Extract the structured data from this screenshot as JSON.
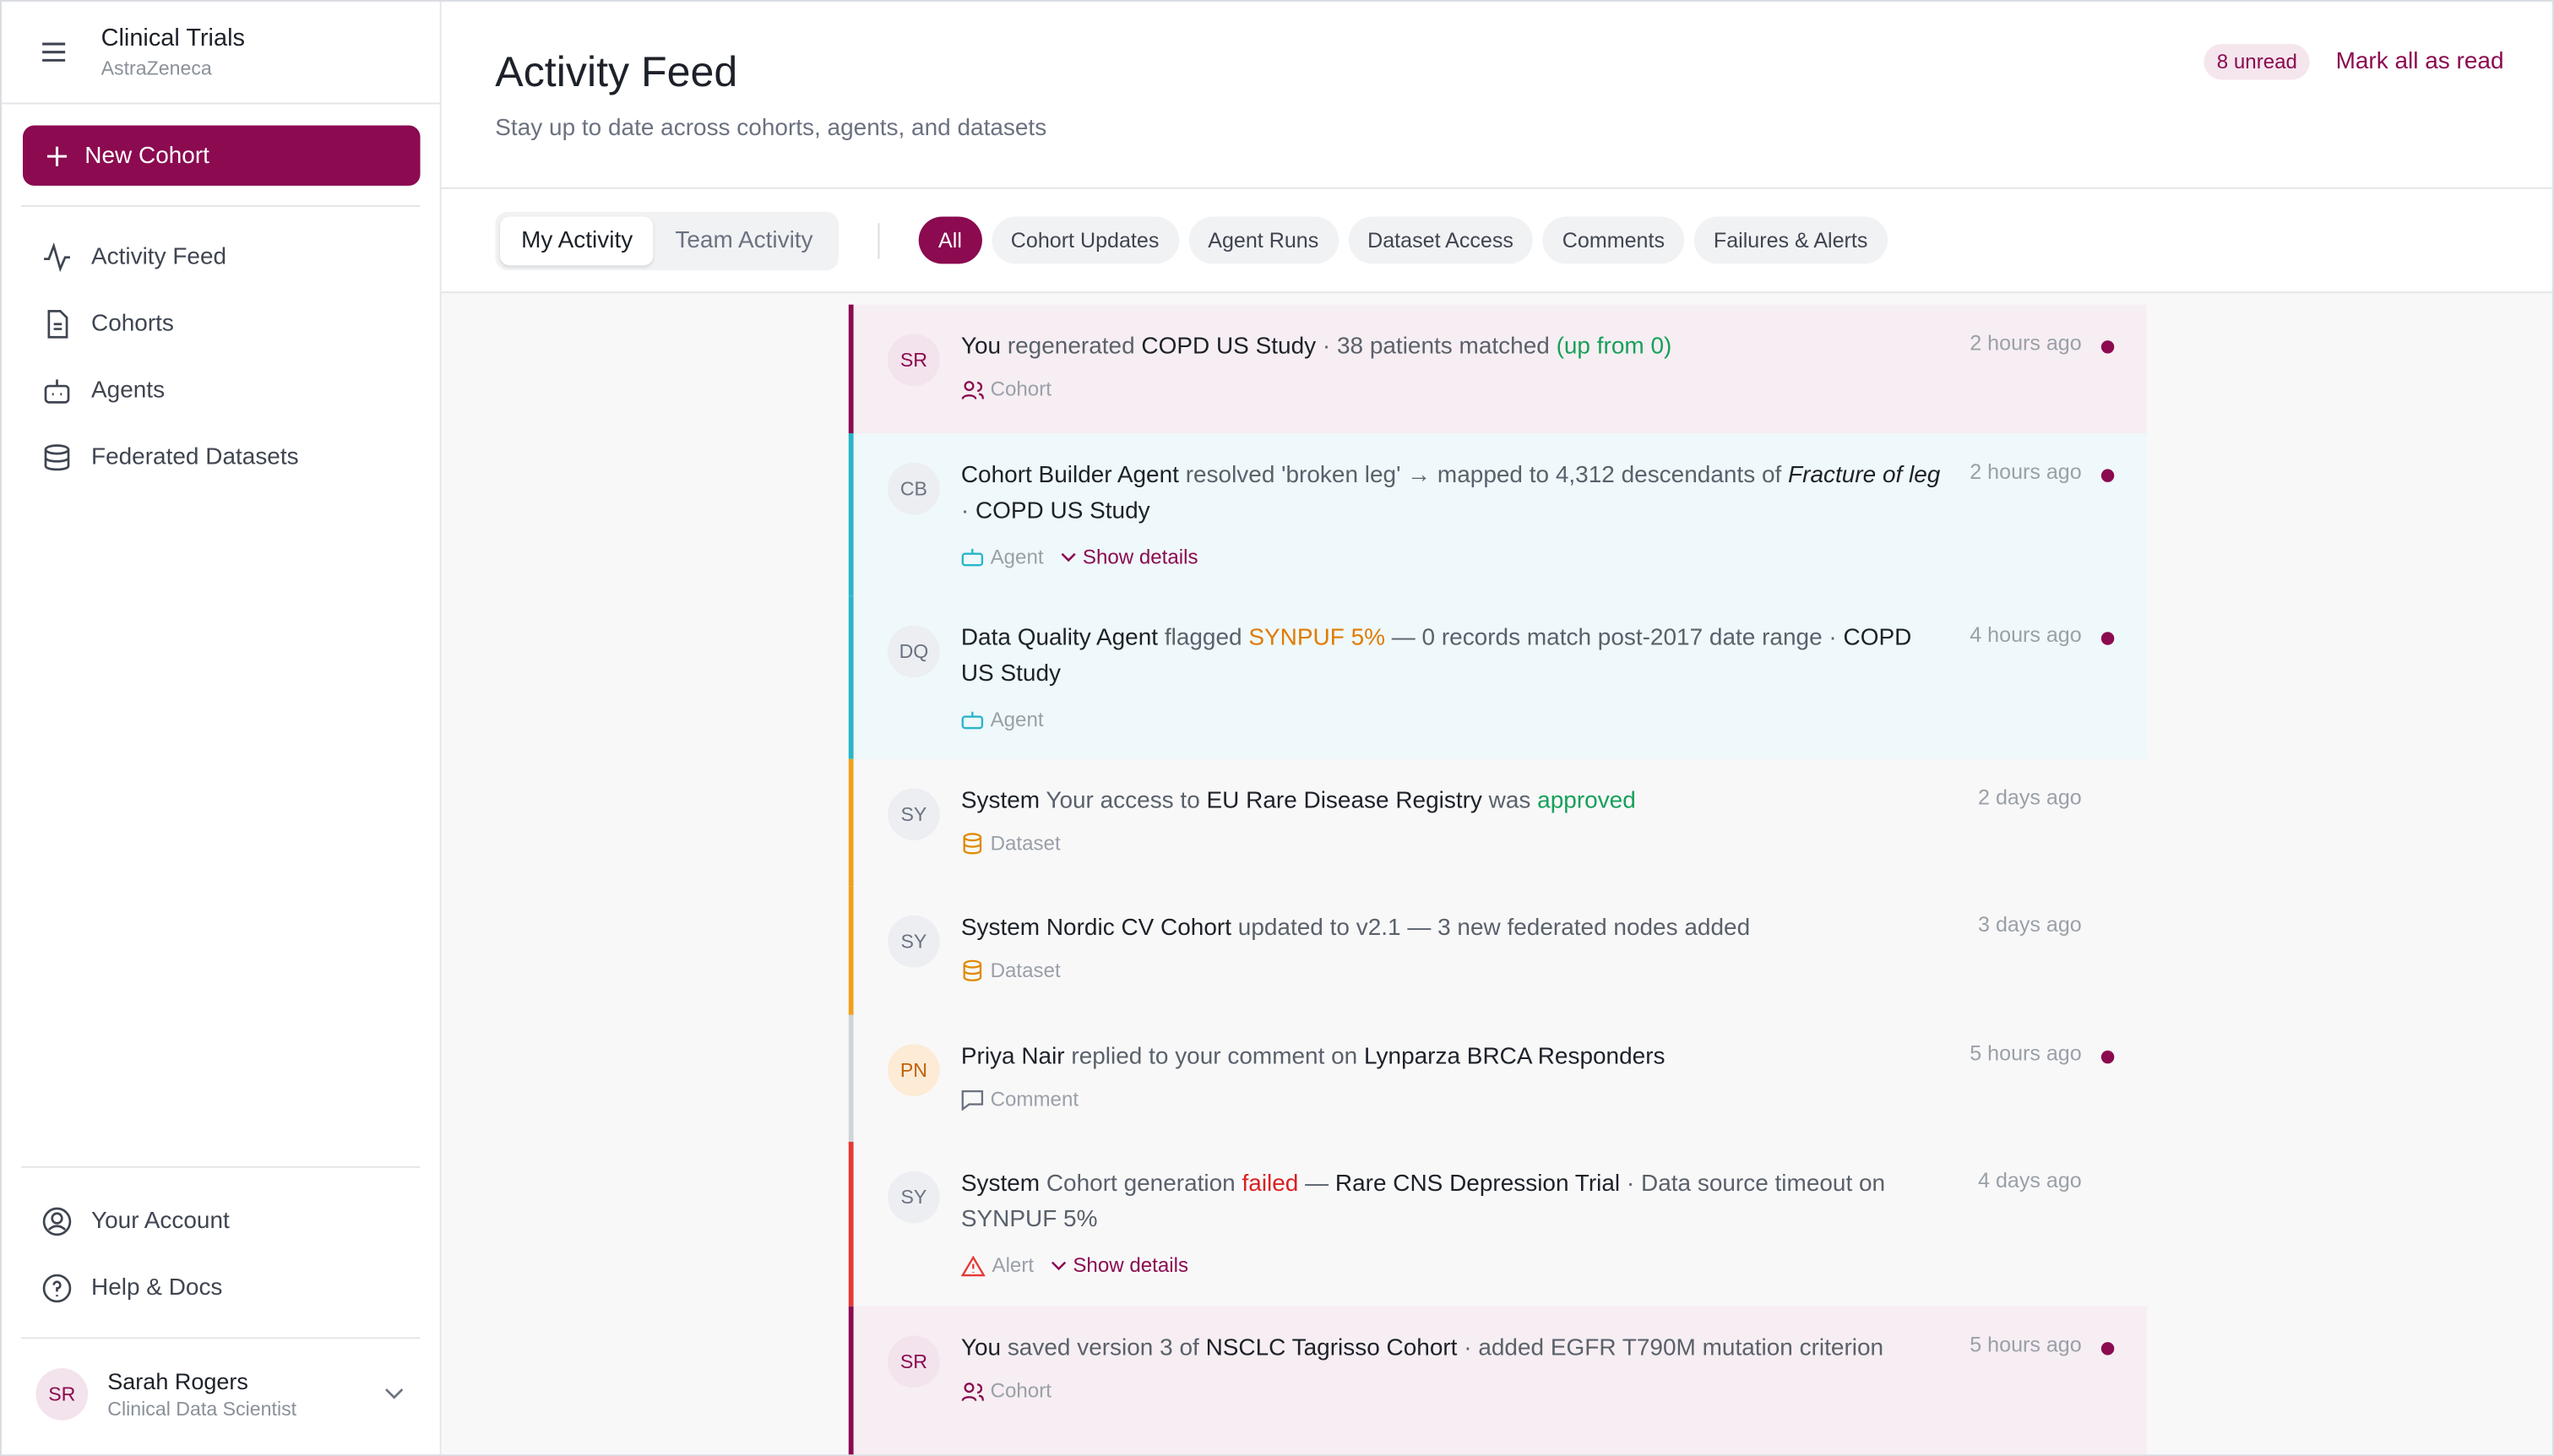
{
  "sidebar": {
    "workspace": "Clinical Trials",
    "org": "AstraZeneca",
    "new_cohort": "New Cohort",
    "nav": [
      "Activity Feed",
      "Cohorts",
      "Agents",
      "Federated Datasets"
    ],
    "footer_nav": [
      "Your Account",
      "Help & Docs"
    ],
    "user": {
      "initials": "SR",
      "name": "Sarah Rogers",
      "role": "Clinical Data Scientist"
    }
  },
  "header": {
    "title": "Activity Feed",
    "subtitle": "Stay up to date across cohorts, agents, and datasets",
    "unread": "8 unread",
    "mark_all": "Mark all as read"
  },
  "tabs": [
    "My Activity",
    "Team Activity"
  ],
  "filters": [
    "All",
    "Cohort Updates",
    "Agent Runs",
    "Dataset Access",
    "Comments",
    "Failures & Alerts"
  ],
  "feed": [
    {
      "initials": "SR",
      "segments": [
        "You",
        " regenerated ",
        "COPD US Study",
        " · 38 patients matched ",
        "(up from 0)"
      ],
      "tag": "Cohort",
      "time": "2 hours ago"
    },
    {
      "initials": "CB",
      "segments": [
        "Cohort Builder Agent",
        " resolved 'broken leg' → mapped to 4,312 descendants of ",
        "Fracture of leg",
        " · ",
        "COPD US Study"
      ],
      "tag": "Agent",
      "show_details": "Show details",
      "time": "2 hours ago"
    },
    {
      "initials": "DQ",
      "segments": [
        "Data Quality Agent",
        " flagged ",
        "SYNPUF 5%",
        " — 0 records match post-2017 date range · ",
        "COPD US Study"
      ],
      "tag": "Agent",
      "time": "4 hours ago"
    },
    {
      "initials": "SY",
      "segments": [
        "System",
        " Your access to ",
        "EU Rare Disease Registry",
        " was ",
        "approved"
      ],
      "tag": "Dataset",
      "time": "2 days ago"
    },
    {
      "initials": "SY",
      "segments": [
        "System",
        " ",
        "Nordic CV Cohort",
        " updated to v2.1 — 3 new federated nodes added"
      ],
      "tag": "Dataset",
      "time": "3 days ago"
    },
    {
      "initials": "PN",
      "segments": [
        "Priya Nair",
        " replied to your comment on ",
        "Lynparza BRCA Responders"
      ],
      "tag": "Comment",
      "time": "5 hours ago"
    },
    {
      "initials": "SY",
      "segments": [
        "System",
        " Cohort generation ",
        "failed",
        " — ",
        "Rare CNS Depression Trial",
        " · Data source timeout on SYNPUF 5%"
      ],
      "tag": "Alert",
      "show_details": "Show details",
      "time": "4 days ago"
    },
    {
      "initials": "SR",
      "segments": [
        "You",
        " saved version 3 of ",
        "NSCLC Tagrisso Cohort",
        " · added EGFR T790M mutation criterion"
      ],
      "tag": "Cohort",
      "time": "5 hours ago"
    }
  ]
}
